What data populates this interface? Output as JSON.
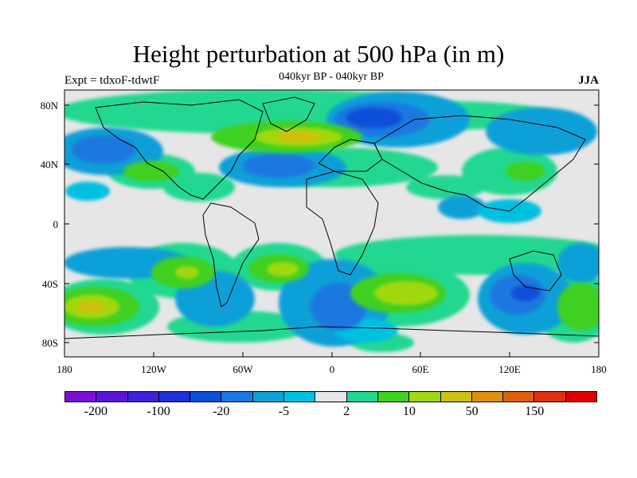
{
  "title": "Height perturbation at 500 hPa (in m)",
  "subtitle": "040kyr BP - 040kyr BP",
  "left_label": "Expt = tdxoF-tdwtF",
  "right_label": "JJA",
  "lat_ticks": [
    "80N",
    "40N",
    "0",
    "40S",
    "80S"
  ],
  "lon_ticks": [
    "180",
    "120W",
    "60W",
    "0",
    "60E",
    "120E",
    "180"
  ],
  "colorbar": {
    "colors": [
      "#7a10d8",
      "#5c15d8",
      "#3e22d8",
      "#2030d8",
      "#0a50d8",
      "#1a78e0",
      "#10a0d8",
      "#00c0e0",
      "#e6e6e6",
      "#20d890",
      "#40d020",
      "#a0d810",
      "#d0c010",
      "#e09010",
      "#e06010",
      "#e03010",
      "#e00000"
    ],
    "labels": [
      "-200",
      "-100",
      "-20",
      "-5",
      "2",
      "10",
      "50",
      "150"
    ]
  },
  "background_color": "#e6e6e6"
}
